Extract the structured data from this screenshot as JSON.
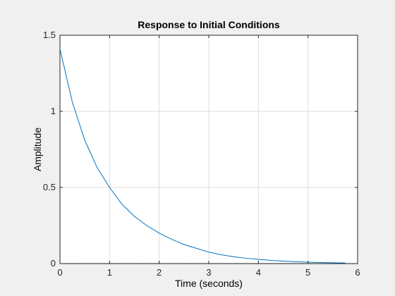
{
  "chart_data": {
    "type": "line",
    "title": "Response to Initial Conditions",
    "xlabel": "Time (seconds)",
    "ylabel": "Amplitude",
    "xlim": [
      0,
      6
    ],
    "ylim": [
      0,
      1.5
    ],
    "xticks": [
      0,
      1,
      2,
      3,
      4,
      5,
      6
    ],
    "xtick_labels": [
      "0",
      "1",
      "2",
      "3",
      "4",
      "5",
      "6"
    ],
    "yticks": [
      0,
      0.5,
      1,
      1.5
    ],
    "ytick_labels": [
      "0",
      "0.5",
      "1",
      "1.5"
    ],
    "grid": true,
    "zero_line": true,
    "series": [
      {
        "color": "#0072bd",
        "x": [
          0,
          0.25,
          0.5,
          0.75,
          1,
          1.25,
          1.5,
          1.75,
          2,
          2.25,
          2.5,
          2.75,
          3,
          3.25,
          3.5,
          3.75,
          4,
          4.25,
          4.5,
          4.75,
          5,
          5.25,
          5.5,
          5.75
        ],
        "y": [
          1.41,
          1.06,
          0.81,
          0.63,
          0.5,
          0.39,
          0.31,
          0.25,
          0.2,
          0.16,
          0.125,
          0.1,
          0.075,
          0.058,
          0.045,
          0.035,
          0.028,
          0.021,
          0.016,
          0.012,
          0.009,
          0.007,
          0.005,
          0.004
        ]
      }
    ]
  }
}
